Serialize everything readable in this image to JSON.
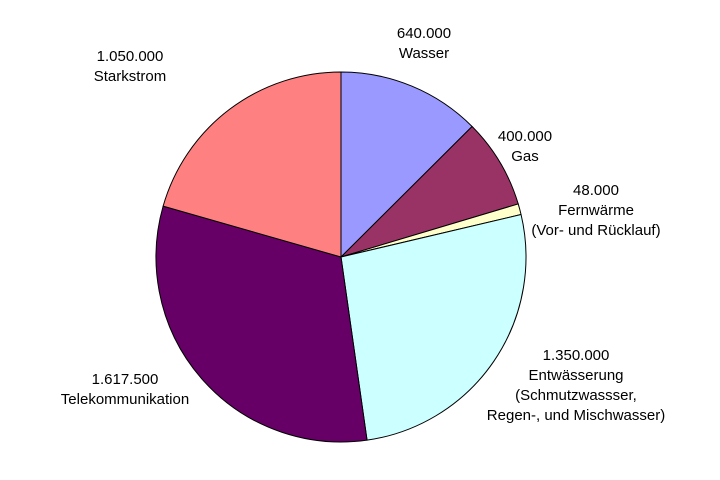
{
  "chart_data": {
    "type": "pie",
    "title": "",
    "series": [
      {
        "slices": [
          {
            "value_label": "640.000",
            "value": 640000,
            "lines": [
              "Wasser"
            ],
            "color": "#9999FF"
          },
          {
            "value_label": "400.000",
            "value": 400000,
            "lines": [
              "Gas"
            ],
            "color": "#993366"
          },
          {
            "value_label": "48.000",
            "value": 48000,
            "lines": [
              "Fernwärme",
              "(Vor- und Rücklauf)"
            ],
            "color": "#FFFFCC"
          },
          {
            "value_label": "1.350.000",
            "value": 1350000,
            "lines": [
              "Entwässerung",
              "(Schmutzwassser,",
              "Regen-, und Mischwasser)"
            ],
            "color": "#CCFFFF"
          },
          {
            "value_label": "1.617.500",
            "value": 1617500,
            "lines": [
              "Telekommunikation"
            ],
            "color": "#660066"
          },
          {
            "value_label": "1.050.000",
            "value": 1050000,
            "lines": [
              "Starkstrom"
            ],
            "color": "#FF8080"
          }
        ]
      }
    ],
    "start": "12 o'clock",
    "direction": "clockwise",
    "legend": "none"
  }
}
